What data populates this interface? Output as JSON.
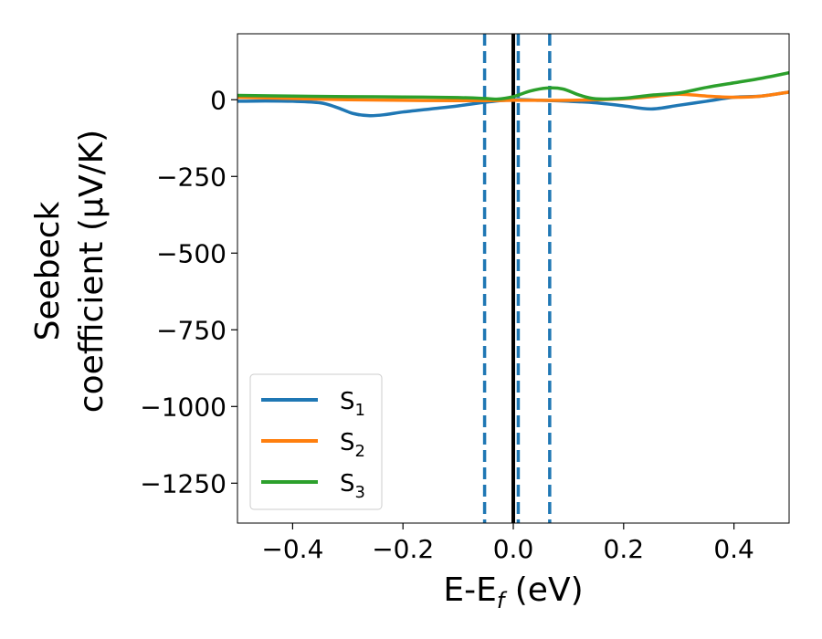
{
  "chart_data": {
    "type": "line",
    "title": "",
    "xlabel": {
      "main": "E-E",
      "sub": "f",
      "tail": " (eV)"
    },
    "ylabel": {
      "line1": "Seebeck",
      "line2": "coefficient  (μV/K)"
    },
    "xlim": [
      -0.5,
      0.5
    ],
    "ylim": [
      -1380,
      215
    ],
    "xticks": [
      -0.4,
      -0.2,
      0.0,
      0.2,
      0.4
    ],
    "xtick_labels": [
      "−0.4",
      "−0.2",
      "0.0",
      "0.2",
      "0.4"
    ],
    "yticks": [
      0,
      -250,
      -500,
      -750,
      -1000,
      -1250
    ],
    "ytick_labels": [
      "0",
      "−250",
      "−500",
      "−750",
      "−1000",
      "−1250"
    ],
    "grid": false,
    "legend_position": "lower-left",
    "vlines": [
      {
        "x": 0.0,
        "style": "solid",
        "color": "#000000"
      },
      {
        "x": -0.052,
        "style": "dashed",
        "color": "#1f77b4"
      },
      {
        "x": 0.009,
        "style": "dashed",
        "color": "#1f77b4"
      },
      {
        "x": 0.066,
        "style": "dashed",
        "color": "#1f77b4"
      }
    ],
    "series": [
      {
        "name": "S",
        "sub": "1",
        "color": "#1f77b4",
        "x": [
          -0.5,
          -0.45,
          -0.4,
          -0.35,
          -0.32,
          -0.29,
          -0.26,
          -0.23,
          -0.2,
          -0.15,
          -0.1,
          -0.05,
          0.0,
          0.05,
          0.1,
          0.15,
          0.2,
          0.25,
          0.3,
          0.35,
          0.4,
          0.45,
          0.5
        ],
        "values": [
          -5,
          -4,
          -5,
          -10,
          -25,
          -45,
          -52,
          -48,
          -40,
          -30,
          -20,
          -8,
          0,
          -2,
          -5,
          -10,
          -20,
          -30,
          -18,
          -5,
          8,
          12,
          25
        ]
      },
      {
        "name": "S",
        "sub": "2",
        "color": "#ff7f0e",
        "x": [
          -0.5,
          -0.4,
          -0.3,
          -0.2,
          -0.1,
          -0.05,
          0.0,
          0.05,
          0.1,
          0.15,
          0.2,
          0.25,
          0.3,
          0.35,
          0.4,
          0.45,
          0.5
        ],
        "values": [
          8,
          4,
          0,
          -2,
          -3,
          -3,
          -2,
          -2,
          -2,
          0,
          3,
          10,
          18,
          12,
          8,
          12,
          25
        ]
      },
      {
        "name": "S",
        "sub": "3",
        "color": "#2ca02c",
        "x": [
          -0.5,
          -0.4,
          -0.3,
          -0.2,
          -0.1,
          -0.05,
          -0.03,
          0.0,
          0.03,
          0.06,
          0.09,
          0.12,
          0.15,
          0.2,
          0.25,
          0.3,
          0.35,
          0.4,
          0.45,
          0.5
        ],
        "values": [
          14,
          12,
          10,
          9,
          7,
          4,
          2,
          10,
          28,
          38,
          35,
          15,
          3,
          5,
          15,
          22,
          40,
          55,
          70,
          88
        ]
      }
    ]
  }
}
